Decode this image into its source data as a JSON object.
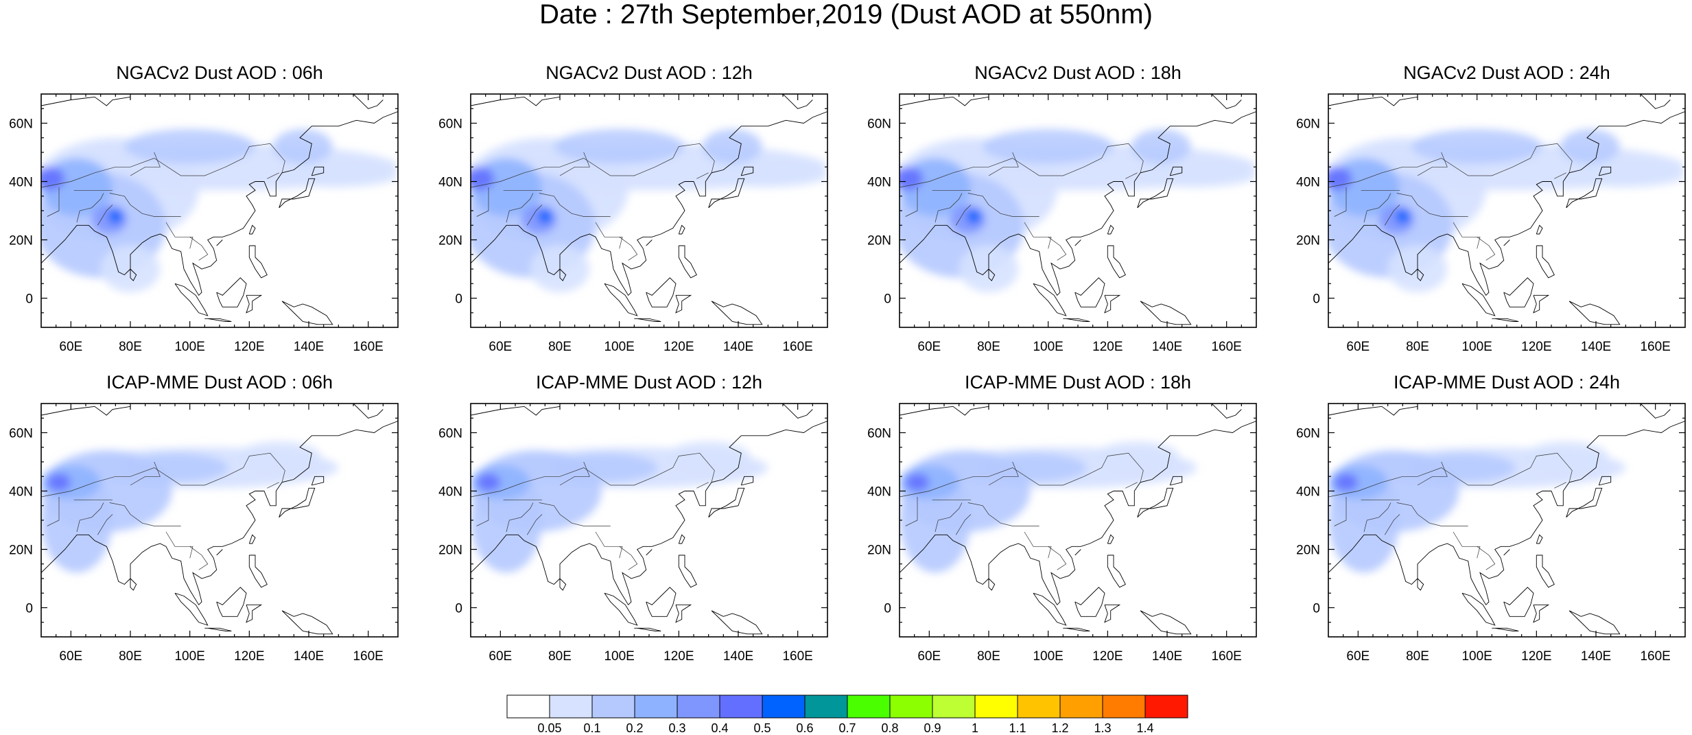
{
  "title": "Date : 27th September,2019 (Dust AOD at 550nm)",
  "map": {
    "lon_range": [
      50,
      170
    ],
    "lat_range": [
      -10,
      70
    ],
    "lon_ticks": [
      "60E",
      "80E",
      "100E",
      "120E",
      "140E",
      "160E"
    ],
    "lat_ticks": [
      "60N",
      "40N",
      "20N",
      "0"
    ],
    "lon_tick_values": [
      60,
      80,
      100,
      120,
      140,
      160
    ],
    "lat_tick_values": [
      60,
      40,
      20,
      0
    ]
  },
  "panels": [
    {
      "title": "NGACv2 Dust AOD : 06h",
      "model": "NGACv2",
      "lead": "06h"
    },
    {
      "title": "NGACv2 Dust AOD : 12h",
      "model": "NGACv2",
      "lead": "12h"
    },
    {
      "title": "NGACv2 Dust AOD : 18h",
      "model": "NGACv2",
      "lead": "18h"
    },
    {
      "title": "NGACv2 Dust AOD : 24h",
      "model": "NGACv2",
      "lead": "24h"
    },
    {
      "title": "ICAP-MME Dust AOD : 06h",
      "model": "ICAP-MME",
      "lead": "06h"
    },
    {
      "title": "ICAP-MME Dust AOD : 12h",
      "model": "ICAP-MME",
      "lead": "12h"
    },
    {
      "title": "ICAP-MME Dust AOD : 18h",
      "model": "ICAP-MME",
      "lead": "18h"
    },
    {
      "title": "ICAP-MME Dust AOD : 24h",
      "model": "ICAP-MME",
      "lead": "24h"
    }
  ],
  "colorbar": {
    "labels": [
      "0.05",
      "0.1",
      "0.2",
      "0.3",
      "0.4",
      "0.5",
      "0.6",
      "0.7",
      "0.8",
      "0.9",
      "1",
      "1.1",
      "1.2",
      "1.3",
      "1.4"
    ],
    "colors": [
      "#ffffff",
      "#d6e2ff",
      "#b5c9ff",
      "#8eb2ff",
      "#7f96ff",
      "#6370ff",
      "#0063ff",
      "#00969a",
      "#4aff00",
      "#8cff00",
      "#bdff32",
      "#ffff00",
      "#ffc300",
      "#ffa000",
      "#ff7c00",
      "#ff1900"
    ]
  }
}
